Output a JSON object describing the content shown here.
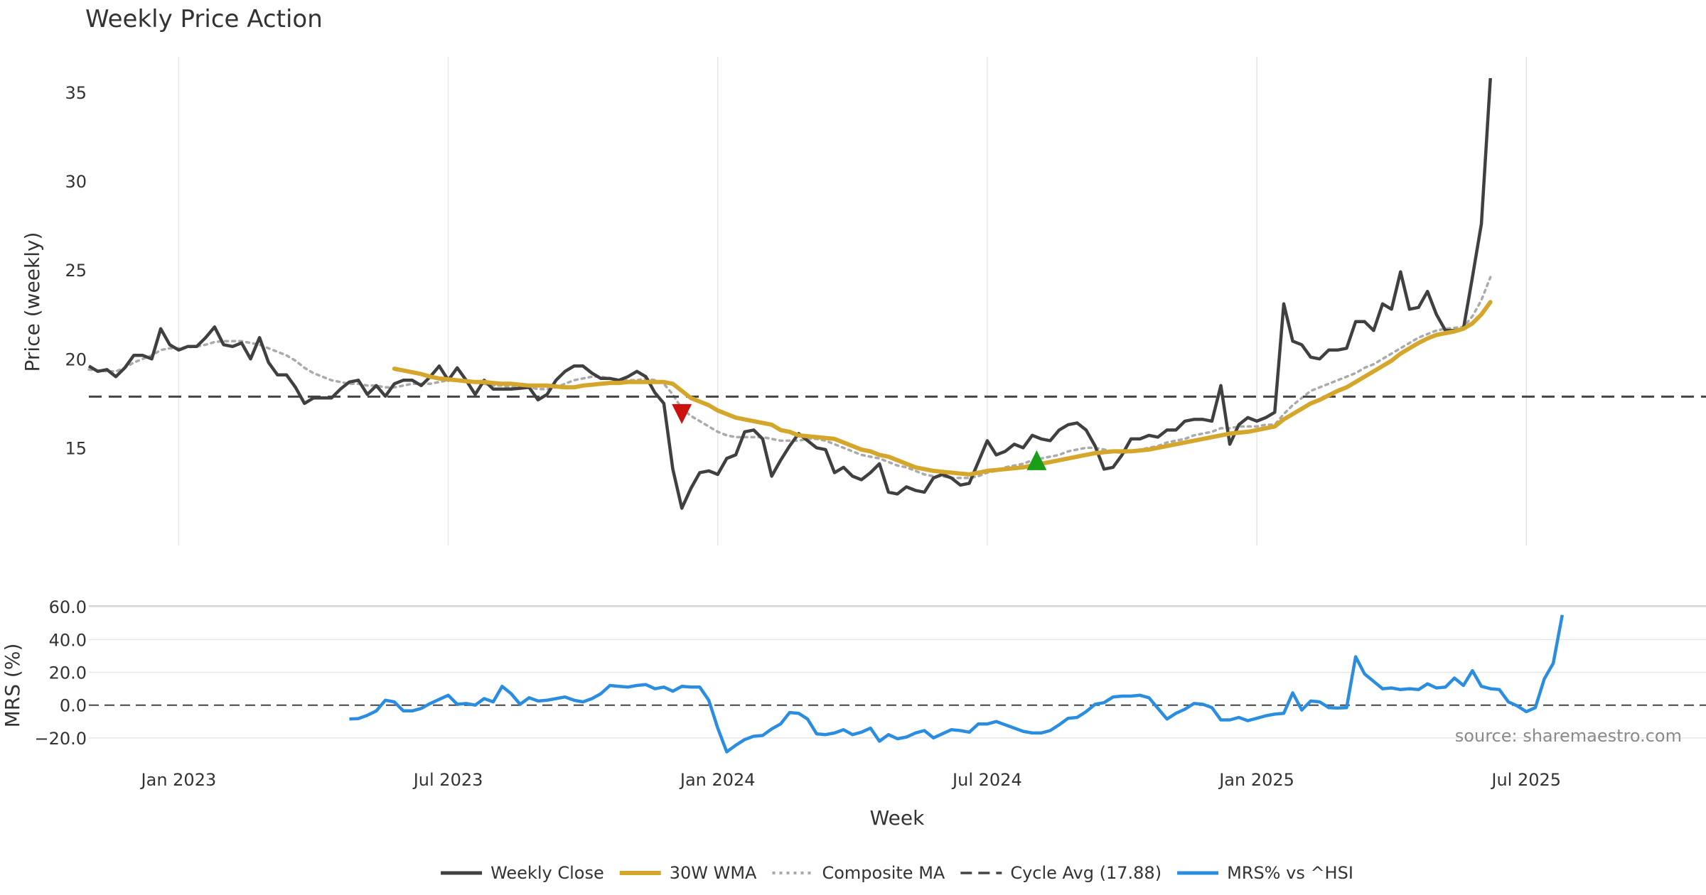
{
  "chart_data": {
    "type": "line",
    "title": "Weekly Price Action",
    "source": "source: sharemaestro.com",
    "xlabel": "Week",
    "x_ticks": [
      "Jan 2023",
      "Jul 2023",
      "Jan 2024",
      "Jul 2024",
      "Jan 2025",
      "Jul 2025"
    ],
    "x_range": [
      0,
      180
    ],
    "x_tick_positions": [
      10,
      40,
      70,
      100,
      130,
      160
    ],
    "colors": {
      "close": "#404040",
      "wma": "#d4a72c",
      "composite": "#aaaaaa",
      "cycle": "#444444",
      "mrs": "#2b8de0",
      "sell_marker": "#cc1111",
      "buy_marker": "#1a9e1a",
      "grid": "#e6e6e6"
    },
    "price_panel": {
      "ylabel": "Price (weekly)",
      "ylim": [
        9.5,
        37
      ],
      "y_ticks": [
        15,
        20,
        25,
        30,
        35
      ],
      "y_tick_labels": [
        "15",
        "20",
        "25",
        "30",
        "35"
      ],
      "cycle_avg": 17.88,
      "series": [
        {
          "name": "Weekly Close",
          "values": [
            19.6,
            19.3,
            19.4,
            19.0,
            19.5,
            20.2,
            20.2,
            20.0,
            21.7,
            20.8,
            20.5,
            20.7,
            20.7,
            21.2,
            21.8,
            20.8,
            20.7,
            20.9,
            20.0,
            21.2,
            19.8,
            19.1,
            19.1,
            18.4,
            17.5,
            17.8,
            17.8,
            17.8,
            18.3,
            18.7,
            18.8,
            18.0,
            18.5,
            17.9,
            18.6,
            18.8,
            18.8,
            18.5,
            19.0,
            19.6,
            18.8,
            19.5,
            18.8,
            18.0,
            18.8,
            18.3,
            18.3,
            18.3,
            18.35,
            18.4,
            17.7,
            18.0,
            18.8,
            19.3,
            19.6,
            19.6,
            19.2,
            18.9,
            18.9,
            18.8,
            19.0,
            19.3,
            19.0,
            18.1,
            17.5,
            13.8,
            11.6,
            12.7,
            13.6,
            13.7,
            13.5,
            14.4,
            14.6,
            15.9,
            16.0,
            15.5,
            13.4,
            14.3,
            15.1,
            15.8,
            15.4,
            15.0,
            14.9,
            13.6,
            13.9,
            13.4,
            13.2,
            13.6,
            14.1,
            12.5,
            12.4,
            12.8,
            12.6,
            12.5,
            13.3,
            13.5,
            13.3,
            12.9,
            13.0,
            14.2,
            15.4,
            14.6,
            14.8,
            15.2,
            15.0,
            15.7,
            15.5,
            15.4,
            16.0,
            16.3,
            16.4,
            16.0,
            15.1,
            13.8,
            13.9,
            14.6,
            15.5,
            15.5,
            15.7,
            15.6,
            16.0,
            16.0,
            16.5,
            16.6,
            16.6,
            16.5,
            18.5,
            15.2,
            16.3,
            16.7,
            16.5,
            16.7,
            17.0,
            23.1,
            21.0,
            20.8,
            20.1,
            20.0,
            20.5,
            20.5,
            20.6,
            22.1,
            22.1,
            21.6,
            23.1,
            22.8,
            24.9,
            22.8,
            22.9,
            23.8,
            22.5,
            21.6,
            21.6,
            21.7,
            24.6,
            27.6,
            35.8
          ]
        },
        {
          "name": "30W WMA",
          "values": [
            null,
            null,
            null,
            null,
            null,
            null,
            null,
            null,
            null,
            null,
            null,
            null,
            null,
            null,
            null,
            null,
            null,
            null,
            null,
            null,
            null,
            null,
            null,
            null,
            null,
            null,
            null,
            null,
            null,
            null,
            null,
            null,
            null,
            null,
            19.45,
            19.35,
            19.25,
            19.15,
            19.0,
            18.9,
            18.85,
            18.8,
            18.75,
            18.7,
            18.7,
            18.65,
            18.6,
            18.6,
            18.55,
            18.5,
            18.5,
            18.5,
            18.45,
            18.4,
            18.4,
            18.5,
            18.55,
            18.6,
            18.65,
            18.65,
            18.7,
            18.7,
            18.7,
            18.7,
            18.7,
            18.6,
            18.2,
            17.8,
            17.6,
            17.4,
            17.1,
            16.9,
            16.7,
            16.6,
            16.5,
            16.4,
            16.3,
            16.0,
            15.9,
            15.7,
            15.65,
            15.6,
            15.55,
            15.5,
            15.3,
            15.1,
            14.9,
            14.8,
            14.6,
            14.5,
            14.3,
            14.1,
            13.9,
            13.8,
            13.7,
            13.65,
            13.6,
            13.55,
            13.5,
            13.6,
            13.7,
            13.75,
            13.8,
            13.85,
            13.9,
            14.0,
            14.1,
            14.2,
            14.3,
            14.4,
            14.5,
            14.6,
            14.7,
            14.75,
            14.8,
            14.8,
            14.8,
            14.85,
            14.9,
            15.0,
            15.1,
            15.2,
            15.3,
            15.4,
            15.5,
            15.6,
            15.7,
            15.8,
            15.85,
            15.9,
            16.0,
            16.1,
            16.2,
            16.6,
            16.9,
            17.2,
            17.5,
            17.7,
            17.95,
            18.2,
            18.4,
            18.7,
            19.0,
            19.3,
            19.6,
            19.9,
            20.3,
            20.6,
            20.9,
            21.15,
            21.35,
            21.45,
            21.55,
            21.7,
            22.0,
            22.5,
            23.2
          ]
        },
        {
          "name": "Composite MA",
          "values": [
            19.4,
            19.35,
            19.3,
            19.3,
            19.5,
            19.8,
            20.0,
            20.2,
            20.5,
            20.6,
            20.6,
            20.65,
            20.7,
            20.8,
            20.95,
            21.0,
            21.0,
            21.0,
            20.9,
            20.8,
            20.6,
            20.4,
            20.2,
            19.9,
            19.5,
            19.2,
            19.0,
            18.8,
            18.7,
            18.6,
            18.6,
            18.5,
            18.5,
            18.4,
            18.4,
            18.5,
            18.6,
            18.6,
            18.6,
            18.7,
            18.8,
            18.8,
            18.7,
            18.7,
            18.6,
            18.5,
            18.5,
            18.4,
            18.4,
            18.4,
            18.3,
            18.3,
            18.4,
            18.6,
            18.8,
            18.9,
            19.0,
            19.0,
            18.9,
            18.8,
            18.8,
            18.8,
            18.9,
            18.8,
            18.6,
            18.0,
            17.2,
            16.8,
            16.5,
            16.2,
            15.9,
            15.7,
            15.6,
            15.6,
            15.6,
            15.6,
            15.5,
            15.4,
            15.4,
            15.4,
            15.5,
            15.5,
            15.4,
            15.2,
            15.0,
            14.8,
            14.6,
            14.5,
            14.4,
            14.2,
            14.0,
            13.9,
            13.7,
            13.5,
            13.4,
            13.4,
            13.3,
            13.3,
            13.3,
            13.4,
            13.6,
            13.7,
            13.9,
            14.0,
            14.1,
            14.3,
            14.4,
            14.5,
            14.6,
            14.8,
            14.9,
            15.0,
            15.0,
            14.9,
            14.8,
            14.7,
            14.8,
            14.9,
            15.0,
            15.1,
            15.3,
            15.4,
            15.5,
            15.7,
            15.8,
            15.9,
            16.1,
            16.1,
            16.2,
            16.2,
            16.2,
            16.3,
            16.3,
            16.9,
            17.4,
            17.8,
            18.2,
            18.4,
            18.6,
            18.8,
            19.0,
            19.2,
            19.5,
            19.7,
            20.0,
            20.3,
            20.6,
            20.9,
            21.2,
            21.4,
            21.6,
            21.7,
            21.75,
            21.8,
            22.4,
            23.3,
            24.6
          ]
        }
      ],
      "markers": [
        {
          "name": "sell-signal",
          "x": 66,
          "y": 16.9,
          "shape": "triangle-down"
        },
        {
          "name": "buy-signal",
          "x": 105.5,
          "y": 14.3,
          "shape": "triangle-up"
        }
      ]
    },
    "mrs_panel": {
      "ylabel": "MRS (%)",
      "ylim": [
        -27,
        64
      ],
      "y_ticks": [
        -20,
        0,
        20,
        40,
        60
      ],
      "y_tick_labels": [
        "−20.0",
        "0.0",
        "20.0",
        "40.0",
        "60.0"
      ],
      "zero_line": 0,
      "series": [
        {
          "name": "MRS% vs ^HSI",
          "x_start": 29,
          "values": [
            -8.5,
            -8.2,
            -6.2,
            -3.5,
            3.0,
            2.0,
            -3.5,
            -3.5,
            -2.0,
            1.0,
            3.5,
            6.0,
            0.5,
            1.0,
            0.0,
            4.0,
            2.0,
            11.5,
            7.0,
            0.5,
            4.5,
            2.5,
            3.0,
            4.0,
            5.0,
            3.0,
            2.0,
            4.0,
            7.0,
            12.0,
            11.5,
            11.0,
            12.0,
            12.5,
            10.0,
            11.0,
            8.5,
            11.5,
            11.0,
            11.0,
            3.0,
            -14.0,
            -28.5,
            -24.5,
            -21.0,
            -19.0,
            -18.5,
            -14.5,
            -11.5,
            -4.5,
            -5.0,
            -8.5,
            -17.5,
            -18.0,
            -17.0,
            -15.0,
            -18.0,
            -16.5,
            -14.0,
            -22.0,
            -18.0,
            -20.5,
            -19.5,
            -17.0,
            -15.5,
            -20.0,
            -17.5,
            -15.0,
            -15.5,
            -16.5,
            -11.5,
            -11.5,
            -10.0,
            -12.0,
            -14.0,
            -16.0,
            -17.0,
            -17.0,
            -15.5,
            -12.0,
            -8.0,
            -7.5,
            -4.0,
            0.5,
            1.5,
            5.0,
            5.5,
            5.5,
            6.0,
            4.5,
            -2.0,
            -8.5,
            -5.0,
            -2.5,
            1.0,
            0.5,
            -1.5,
            -9.0,
            -9.0,
            -7.5,
            -9.5,
            -8.0,
            -6.5,
            -5.5,
            -5.0,
            7.5,
            -3.0,
            2.5,
            2.0,
            -1.5,
            -1.8,
            -1.5,
            29.5,
            19.0,
            14.5,
            10.0,
            10.5,
            9.5,
            10.0,
            9.5,
            13.0,
            10.5,
            11.0,
            16.5,
            12.0,
            21.0,
            11.5,
            10.0,
            9.5,
            2.0,
            -0.5,
            -4.0,
            -1.5,
            16.0,
            25.5,
            55.0
          ]
        }
      ]
    },
    "legend": [
      {
        "name": "Weekly Close",
        "style": "solid-dark"
      },
      {
        "name": "30W WMA",
        "style": "solid-gold"
      },
      {
        "name": "Composite MA",
        "style": "dotted-grey"
      },
      {
        "name": "Cycle Avg (17.88)",
        "style": "dashed-dark"
      },
      {
        "name": "MRS% vs ^HSI",
        "style": "solid-blue"
      }
    ]
  }
}
